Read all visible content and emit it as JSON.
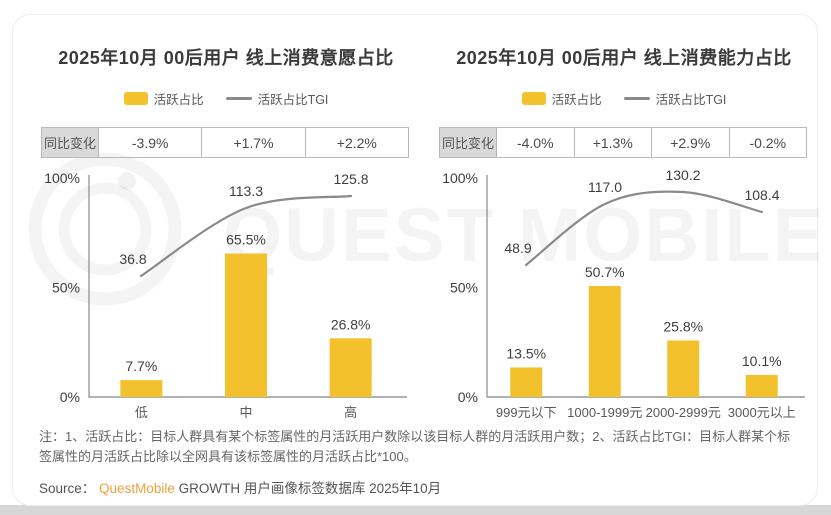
{
  "watermark_text": "QUEST MOBILE",
  "colors": {
    "bar_yellow": "#F3C12C",
    "tgi_line_gray": "#8A8A8A",
    "brand_orange": "#EBA03C",
    "table_label_bg": "#D9D9D9",
    "axis_gray": "#999999"
  },
  "footer": {
    "note": "注：1、活跃占比：目标人群具有某个标签属性的月活跃用户数除以该目标人群的月活跃用户数；2、活跃占比TGI：目标人群某个标签属性的月活跃占比除以全网具有该标签属性的月活跃占比*100。",
    "source_prefix": "Source：",
    "source_brand": "QuestMobile",
    "source_rest": " GROWTH 用户画像标签数据库 2025年10月"
  },
  "chart_data": [
    {
      "type": "bar+line",
      "title": "2025年10月 00后用户 线上消费意愿占比",
      "categories": [
        "低",
        "中",
        "高"
      ],
      "series": [
        {
          "name": "活跃占比",
          "type": "bar",
          "unit": "%",
          "values": [
            7.7,
            65.5,
            26.8
          ]
        },
        {
          "name": "活跃占比TGI",
          "type": "line",
          "values": [
            36.8,
            113.3,
            125.8
          ]
        }
      ],
      "yoy": {
        "label": "同比变化",
        "values": [
          "-3.9%",
          "+1.7%",
          "+2.2%"
        ]
      },
      "ylim": [
        0,
        100
      ],
      "y_ticks": [
        "0%",
        "50%",
        "100%"
      ],
      "grid": false,
      "legend_position": "top"
    },
    {
      "type": "bar+line",
      "title": "2025年10月 00后用户 线上消费能力占比",
      "categories": [
        "999元以下",
        "1000-1999元",
        "2000-2999元",
        "3000元以上"
      ],
      "series": [
        {
          "name": "活跃占比",
          "type": "bar",
          "unit": "%",
          "values": [
            13.5,
            50.7,
            25.8,
            10.1
          ]
        },
        {
          "name": "活跃占比TGI",
          "type": "line",
          "values": [
            48.9,
            117.0,
            130.2,
            108.4
          ]
        }
      ],
      "yoy": {
        "label": "同比变化",
        "values": [
          "-4.0%",
          "+1.3%",
          "+2.9%",
          "-0.2%"
        ]
      },
      "ylim": [
        0,
        100
      ],
      "y_ticks": [
        "0%",
        "50%",
        "100%"
      ],
      "grid": false,
      "legend_position": "top"
    }
  ]
}
